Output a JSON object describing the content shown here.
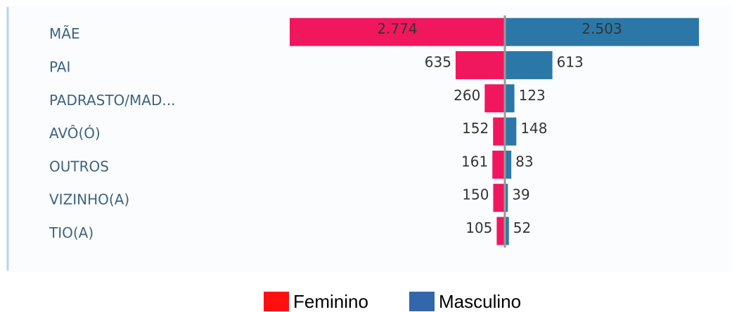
{
  "chart_data": {
    "type": "butterfly",
    "categories": [
      "MÃE",
      "PAI",
      "PADRASTO/MAD...",
      "AVÔ(Ó)",
      "OUTROS",
      "VIZINHO(A)",
      "TIO(A)"
    ],
    "series": [
      {
        "name": "Feminino",
        "color": "#f0175f",
        "legend_color": "#ff1010",
        "values": [
          2774,
          635,
          260,
          152,
          161,
          150,
          105
        ],
        "value_labels": [
          "2.774",
          "635",
          "260",
          "152",
          "161",
          "150",
          "105"
        ]
      },
      {
        "name": "Masculino",
        "color": "#2b78a8",
        "legend_color": "#3366aa",
        "values": [
          2503,
          613,
          123,
          148,
          83,
          39,
          52
        ],
        "value_labels": [
          "2.503",
          "613",
          "123",
          "148",
          "83",
          "39",
          "52"
        ]
      }
    ]
  }
}
